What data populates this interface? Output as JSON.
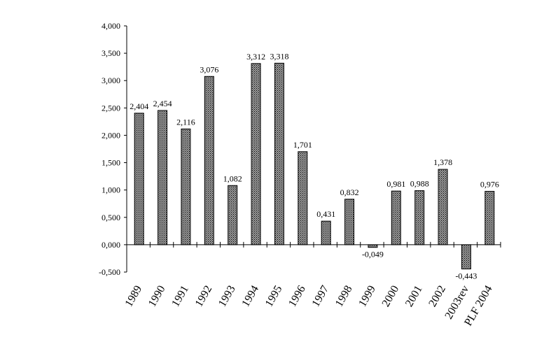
{
  "chart_data": {
    "type": "bar",
    "categories": [
      "1989",
      "1990",
      "1991",
      "1992",
      "1993",
      "1994",
      "1995",
      "1996",
      "1997",
      "1998",
      "1999",
      "2000",
      "2001",
      "2002",
      "2003rev",
      "PLF 2004"
    ],
    "values": [
      2.404,
      2.454,
      2.116,
      3.076,
      1.082,
      3.312,
      3.318,
      1.701,
      0.431,
      0.832,
      -0.049,
      0.981,
      0.988,
      1.378,
      -0.443,
      0.976
    ],
    "data_labels": [
      "2,404",
      "2,454",
      "2,116",
      "3,076",
      "1,082",
      "3,312",
      "3,318",
      "1,701",
      "0,431",
      "0,832",
      "-0,049",
      "0,981",
      "0,988",
      "1,378",
      "-0,443",
      "0,976"
    ],
    "title": "",
    "xlabel": "",
    "ylabel": "",
    "ylim": [
      -0.5,
      4.0
    ],
    "yticks": [
      -0.5,
      0.0,
      0.5,
      1.0,
      1.5,
      2.0,
      2.5,
      3.0,
      3.5,
      4.0
    ],
    "ytick_labels": [
      "-0,500",
      "0,000",
      "0,500",
      "1,000",
      "1,500",
      "2,000",
      "2,500",
      "3,000",
      "3,500",
      "4,000"
    ],
    "grid": false,
    "legend": "none",
    "bar_pattern": "dotted",
    "colors": {
      "bar_fill": "#9a9a9a",
      "bar_dot": "#000000",
      "bar_border": "#000000",
      "axis": "#000000",
      "background": "#ffffff"
    }
  }
}
